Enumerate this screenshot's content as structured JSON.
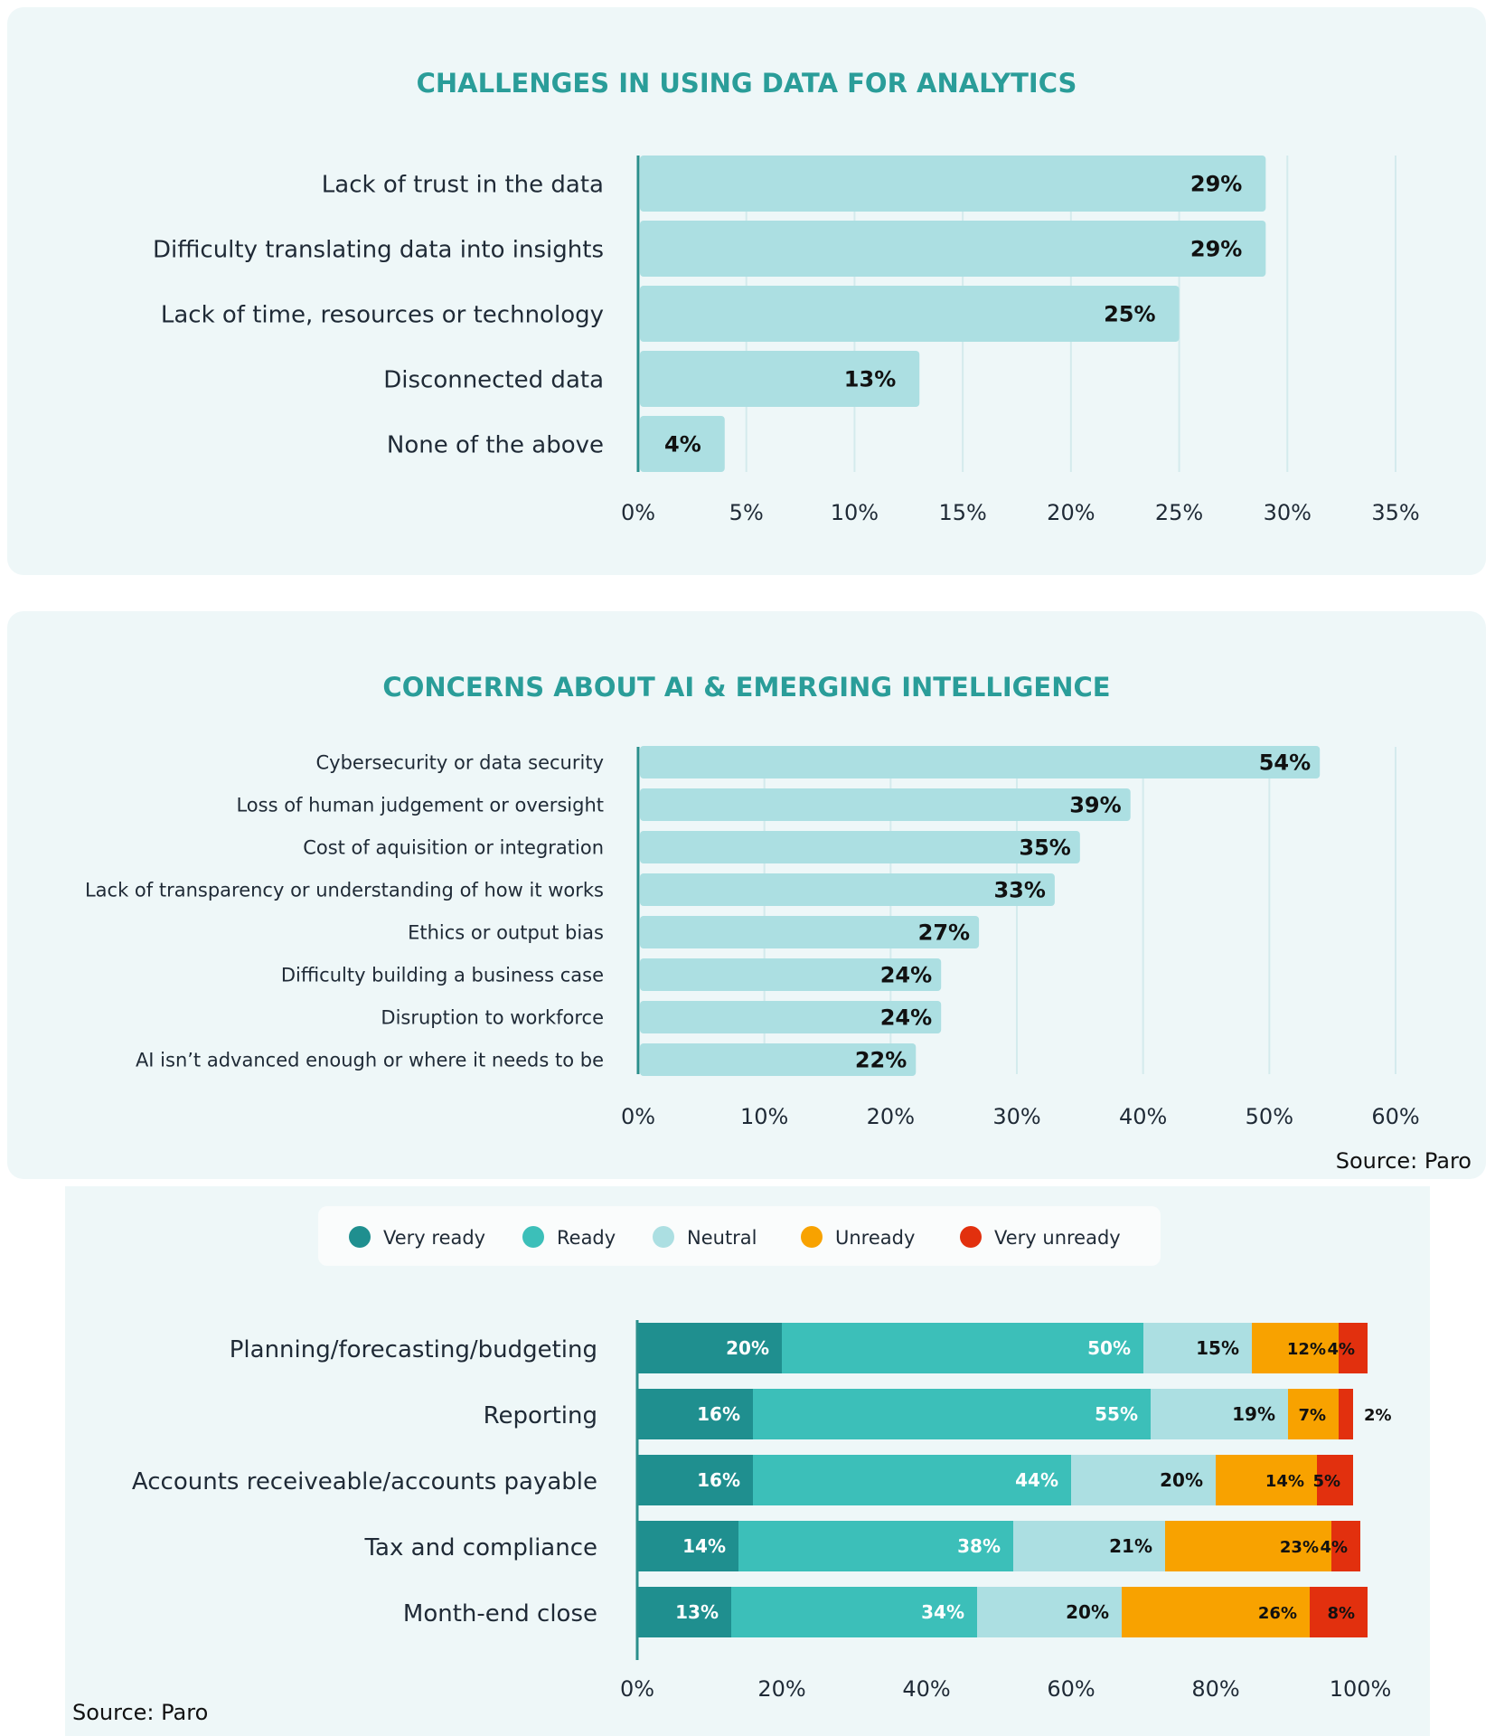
{
  "chart_data": [
    {
      "type": "bar",
      "orientation": "horizontal",
      "title": "CHALLENGES IN USING DATA FOR ANALYTICS",
      "categories": [
        "Lack of trust in the data",
        "Difficulty translating data into insights",
        "Lack of time, resources or technology",
        "Disconnected data",
        "None of the above"
      ],
      "values": [
        29,
        29,
        25,
        13,
        4
      ],
      "value_labels": [
        "29%",
        "29%",
        "25%",
        "13%",
        "4%"
      ],
      "xlim": [
        0,
        35
      ],
      "ticks": [
        "0%",
        "5%",
        "10%",
        "15%",
        "20%",
        "25%",
        "30%",
        "35%"
      ],
      "grid": true,
      "color": "#acdfe2"
    },
    {
      "type": "bar",
      "orientation": "horizontal",
      "title": "CONCERNS ABOUT AI & EMERGING INTELLIGENCE",
      "categories": [
        "Cybersecurity or data security",
        "Loss of human judgement or oversight",
        "Cost of aquisition or integration",
        "Lack of transparency or understanding of how it works",
        "Ethics or output bias",
        "Difficulty building a business case",
        "Disruption to workforce",
        "AI isn’t advanced enough or where it needs to be"
      ],
      "values": [
        54,
        39,
        35,
        33,
        27,
        24,
        24,
        22
      ],
      "value_labels": [
        "54%",
        "39%",
        "35%",
        "33%",
        "27%",
        "24%",
        "24%",
        "22%"
      ],
      "xlim": [
        0,
        60
      ],
      "ticks": [
        "0%",
        "10%",
        "20%",
        "30%",
        "40%",
        "50%",
        "60%"
      ],
      "grid": true,
      "color": "#acdfe2",
      "source": "Source: Paro"
    },
    {
      "type": "bar",
      "orientation": "horizontal",
      "stacked": true,
      "categories": [
        "Planning/forecasting/budgeting",
        "Reporting",
        "Accounts receiveable/accounts payable",
        "Tax and compliance",
        "Month-end close"
      ],
      "series": [
        {
          "name": "Very ready",
          "color": "#1f8f8f",
          "values": [
            20,
            16,
            16,
            14,
            13
          ],
          "labels": [
            "20%",
            "16%",
            "16%",
            "14%",
            "13%"
          ]
        },
        {
          "name": "Ready",
          "color": "#3cbfb9",
          "values": [
            50,
            55,
            44,
            38,
            34
          ],
          "labels": [
            "50%",
            "55%",
            "44%",
            "38%",
            "34%"
          ]
        },
        {
          "name": "Neutral",
          "color": "#acdfe2",
          "values": [
            15,
            19,
            20,
            21,
            20
          ],
          "labels": [
            "15%",
            "19%",
            "20%",
            "21%",
            "20%"
          ]
        },
        {
          "name": "Unready",
          "color": "#f8a200",
          "values": [
            12,
            7,
            14,
            23,
            26
          ],
          "labels": [
            "12%",
            "7%",
            "14%",
            "23%",
            "26%"
          ]
        },
        {
          "name": "Very unready",
          "color": "#e2300e",
          "values": [
            4,
            2,
            5,
            4,
            8
          ],
          "labels": [
            "4%",
            "2%",
            "5%",
            "4%",
            "8%"
          ]
        }
      ],
      "xlim": [
        0,
        100
      ],
      "ticks": [
        "0%",
        "20%",
        "40%",
        "60%",
        "80%",
        "100%"
      ],
      "legend": "top",
      "source": "Source: Paro"
    }
  ]
}
